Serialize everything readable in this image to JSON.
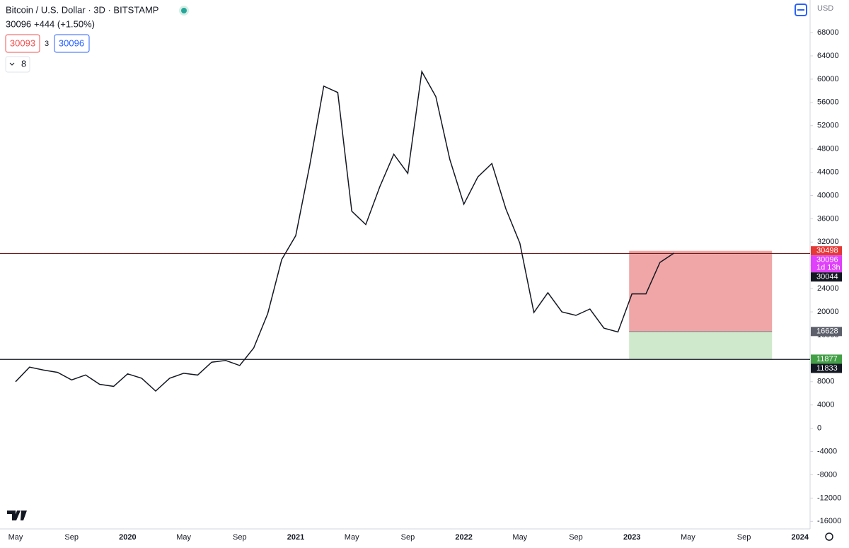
{
  "header": {
    "symbol": "Bitcoin / U.S. Dollar · 3D · BITSTAMP",
    "last": "30096",
    "change": "+444 (+1.50%)",
    "bid": "30093",
    "spread": "3",
    "ask": "30096",
    "indicators": "8",
    "currency": "USD"
  },
  "chart_data": {
    "type": "line",
    "categories": [
      "May",
      null,
      null,
      null,
      "Sep",
      null,
      null,
      null,
      "2020",
      null,
      null,
      null,
      "May",
      null,
      null,
      null,
      "Sep",
      null,
      null,
      null,
      "2021",
      null,
      null,
      null,
      "May",
      null,
      null,
      null,
      "Sep",
      null,
      null,
      null,
      "2022",
      null,
      null,
      null,
      "May",
      null,
      null,
      null,
      "Sep",
      null,
      null,
      null,
      "2023",
      null,
      null,
      null,
      "May",
      null,
      null,
      null,
      "Sep",
      null,
      null,
      null,
      "2024"
    ],
    "series": [
      {
        "name": "BTCUSD",
        "color": "#131722",
        "values": [
          8000,
          10500,
          10000,
          9600,
          8300,
          9150,
          7550,
          7200,
          9350,
          8600,
          6400,
          8600,
          9450,
          9140,
          11350,
          11650,
          10780,
          13800,
          19700,
          29000,
          33100,
          45200,
          58800,
          57700,
          37300,
          35000,
          41500,
          47100,
          43800,
          61300,
          57000,
          46200,
          38500,
          43200,
          45500,
          37700,
          31800,
          19900,
          23300,
          20000,
          19400,
          20500,
          17200,
          16550,
          23100,
          23100,
          28500,
          30096,
          null,
          null,
          null,
          null,
          null,
          null,
          null,
          null,
          null
        ]
      }
    ],
    "ylim": [
      -17300,
      73600
    ],
    "yticks": [
      68000,
      64000,
      60000,
      56000,
      52000,
      48000,
      44000,
      40000,
      36000,
      32000,
      28000,
      24000,
      20000,
      16000,
      12000,
      8000,
      4000,
      0,
      -4000,
      -8000,
      -12000,
      -16000
    ],
    "hlines": [
      {
        "value": 30044,
        "color": "#6d1d1d"
      },
      {
        "value": 11833,
        "color": "#131722"
      }
    ],
    "position": {
      "stop": 30498,
      "entry": 16628,
      "target": 11877,
      "loss_color": "#f0a6a6",
      "profit_color": "#cfe9cc"
    },
    "price_tags": [
      {
        "value": 30498,
        "color": "#e53935"
      },
      {
        "value": 30096,
        "color": "#e040fb",
        "countdown": "1d 13h"
      },
      {
        "value": 30044,
        "color": "#131722"
      },
      {
        "value": 16628,
        "color": "#5d606b"
      },
      {
        "value": 11877,
        "color": "#43a047"
      },
      {
        "value": 11833,
        "color": "#131722"
      }
    ]
  }
}
